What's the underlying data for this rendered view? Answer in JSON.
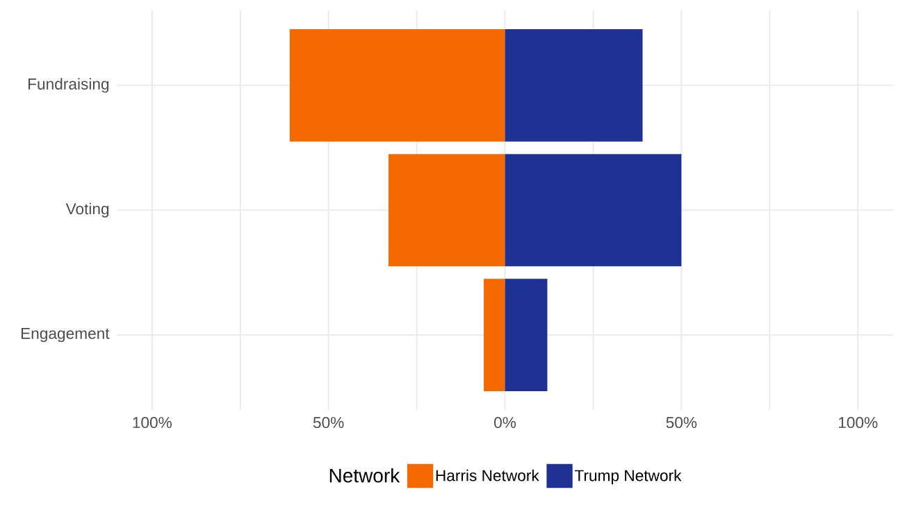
{
  "chart_data": {
    "type": "bar",
    "orientation": "horizontal",
    "stacked": true,
    "categories": [
      "Fundraising",
      "Voting",
      "Engagement"
    ],
    "series": [
      {
        "name": "Harris Network",
        "color": "#f46a00",
        "values": [
          -61,
          -33,
          -6
        ]
      },
      {
        "name": "Trump Network",
        "color": "#1f3193",
        "values": [
          39,
          50,
          12
        ]
      }
    ],
    "xlim": [
      -110,
      110
    ],
    "xticks": [
      {
        "value": -100,
        "label": "100%"
      },
      {
        "value": -75,
        "label": null
      },
      {
        "value": -50,
        "label": "50%"
      },
      {
        "value": -25,
        "label": null
      },
      {
        "value": 0,
        "label": "0%"
      },
      {
        "value": 25,
        "label": null
      },
      {
        "value": 50,
        "label": "50%"
      },
      {
        "value": 75,
        "label": null
      },
      {
        "value": 100,
        "label": "100%"
      }
    ],
    "grid": true,
    "legend": "bottom",
    "legend_title": "Network"
  }
}
